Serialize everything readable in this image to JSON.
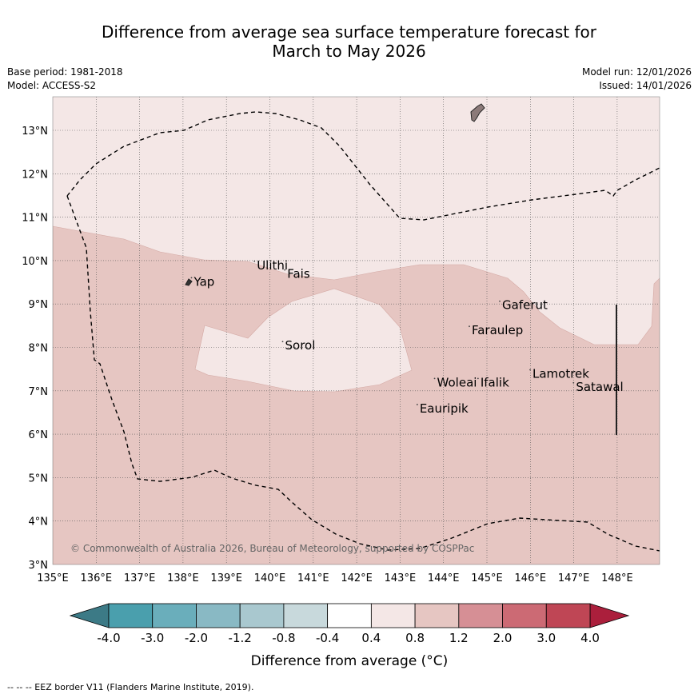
{
  "title": {
    "line1": "Difference from average sea surface temperature forecast for",
    "line2": "March to May 2026"
  },
  "info": {
    "base_period": "Base period: 1981-2018",
    "model": "Model: ACCESS-S2",
    "model_run": "Model run: 12/01/2026",
    "issued": "Issued: 14/01/2026"
  },
  "map": {
    "lon_range": [
      135,
      149
    ],
    "lat_range": [
      3,
      13.8
    ],
    "lon_ticks": [
      135,
      136,
      137,
      138,
      139,
      140,
      141,
      142,
      143,
      144,
      145,
      146,
      147,
      148
    ],
    "lat_ticks": [
      3,
      4,
      5,
      6,
      7,
      8,
      9,
      10,
      11,
      12,
      13
    ],
    "copyright": "© Commonwealth of Australia 2026, Bureau of Meteorology, supported by COSPPac",
    "colors": {
      "band_0_4_to_0_8": "#f4e7e6",
      "band_0_8_to_1_2": "#e6c6c2",
      "land": "#8c7a79"
    },
    "places": [
      {
        "name": "Ulithi",
        "lon": 139.7,
        "lat": 9.8
      },
      {
        "name": "Fais",
        "lon": 140.4,
        "lat": 9.6
      },
      {
        "name": "Yap",
        "lon": 138.25,
        "lat": 9.42
      },
      {
        "name": "Gaferut",
        "lon": 145.35,
        "lat": 8.88
      },
      {
        "name": "Faraulep",
        "lon": 144.65,
        "lat": 8.3
      },
      {
        "name": "Sorol",
        "lon": 140.35,
        "lat": 7.95
      },
      {
        "name": "Woleai",
        "lon": 143.85,
        "lat": 7.1
      },
      {
        "name": "Ifalik",
        "lon": 144.85,
        "lat": 7.1
      },
      {
        "name": "Lamotrek",
        "lon": 146.05,
        "lat": 7.3
      },
      {
        "name": "Satawal",
        "lon": 147.05,
        "lat": 7.0
      },
      {
        "name": "Eauripik",
        "lon": 143.45,
        "lat": 6.5
      }
    ]
  },
  "colorbar": {
    "ticks": [
      "-4.0",
      "-3.0",
      "-2.0",
      "-1.2",
      "-0.8",
      "-0.4",
      "0.4",
      "0.8",
      "1.2",
      "2.0",
      "3.0",
      "4.0"
    ],
    "colors": [
      "#4a9fad",
      "#6aaebb",
      "#89b9c4",
      "#a9c8cf",
      "#c8d9dc",
      "#ffffff",
      "#f4e7e6",
      "#e6c6c2",
      "#d68f95",
      "#cc6a74",
      "#bf4655"
    ],
    "low_extend_color": "#3c7a86",
    "high_extend_color": "#ab1f3c",
    "label": "Difference from average (°C)"
  },
  "footer": "-- -- -- EEZ border V11 (Flanders Marine Institute, 2019)."
}
